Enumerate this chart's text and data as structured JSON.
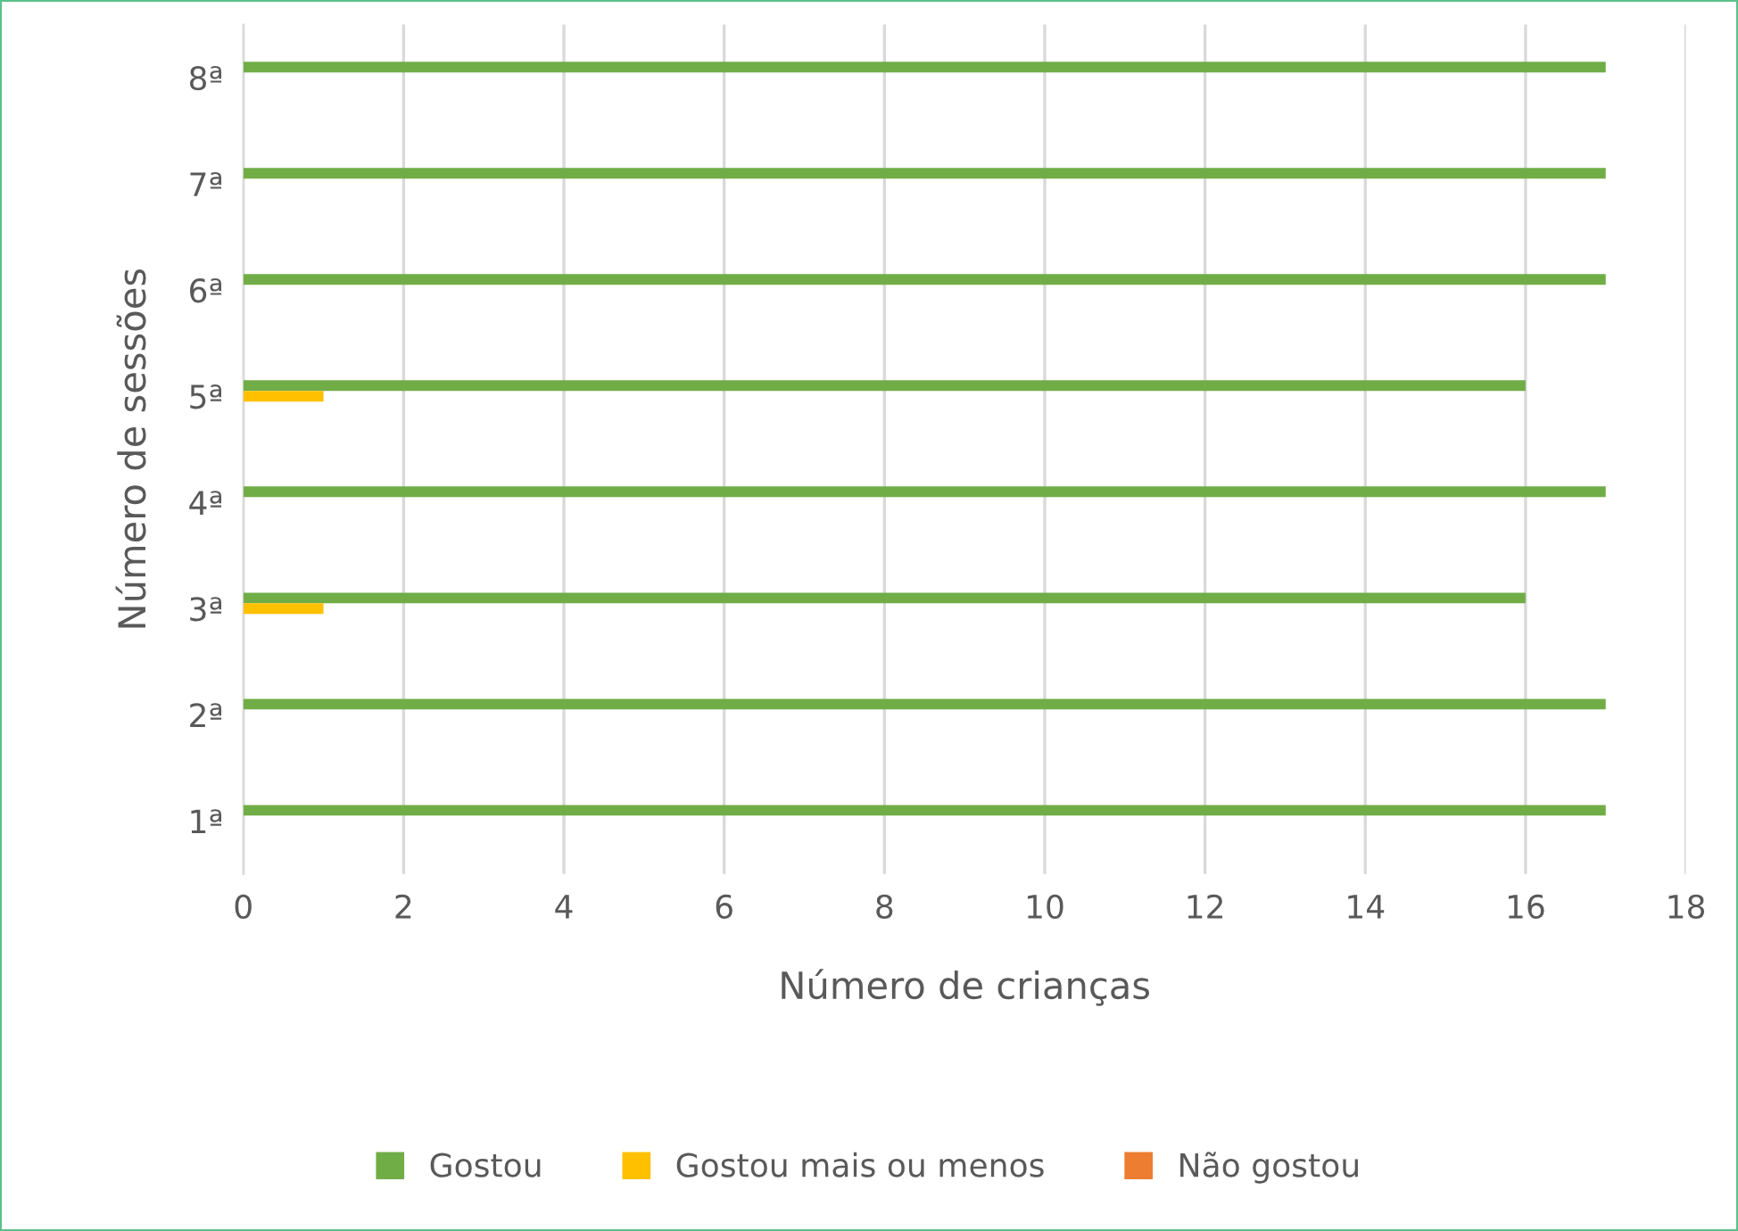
{
  "chart_data": {
    "type": "bar",
    "orientation": "horizontal",
    "categories": [
      "8ª",
      "7ª",
      "6ª",
      "5ª",
      "4ª",
      "3ª",
      "2ª",
      "1ª"
    ],
    "series": [
      {
        "name": "Gostou",
        "color": "#70ad47",
        "values": [
          17,
          17,
          17,
          16,
          17,
          16,
          17,
          17
        ]
      },
      {
        "name": "Gostou mais ou menos",
        "color": "#ffc000",
        "values": [
          0,
          0,
          0,
          1,
          0,
          1,
          0,
          0
        ]
      },
      {
        "name": "Não gostou",
        "color": "#ed7d31",
        "values": [
          0,
          0,
          0,
          0,
          0,
          0,
          0,
          0
        ]
      }
    ],
    "xlabel": "Número de crianças",
    "ylabel": "Número de sessões",
    "xlim": [
      0,
      18
    ],
    "xticks": [
      0,
      2,
      4,
      6,
      8,
      10,
      12,
      14,
      16,
      18
    ],
    "grid": "x",
    "legend": "bottom"
  }
}
